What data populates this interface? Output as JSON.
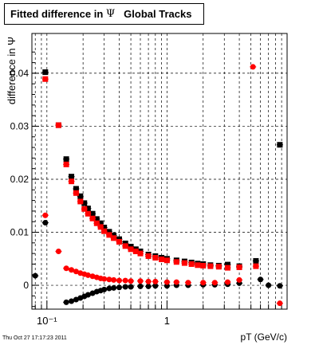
{
  "title": {
    "part1": "Fitted difference in ",
    "symbol": "Ψ",
    "part2": "Global Tracks"
  },
  "footer": {
    "timestamp": "Thu Oct 27 17:17:23 2011"
  },
  "chart_data": {
    "type": "scatter",
    "xlabel": "pT (GeV/c)",
    "ylabel": "difference in Ψ",
    "xscale": "log",
    "xlim": [
      0.075,
      10.0
    ],
    "ylim": [
      -0.0045,
      0.0475
    ],
    "grid": true,
    "x_ticks": [
      {
        "value": 0.1,
        "label": "10⁻¹"
      },
      {
        "value": 1,
        "label": "1"
      }
    ],
    "y_ticks": [
      {
        "value": 0,
        "label": "0"
      },
      {
        "value": 0.01,
        "label": "0.01"
      },
      {
        "value": 0.02,
        "label": "0.02"
      },
      {
        "value": 0.03,
        "label": "0.03"
      },
      {
        "value": 0.04,
        "label": "0.04"
      }
    ],
    "series": [
      {
        "color": "#000000",
        "marker": "square",
        "points": [
          [
            0.097,
            0.0402
          ],
          [
            0.125,
            0.0302
          ],
          [
            0.145,
            0.0238
          ],
          [
            0.16,
            0.0205
          ],
          [
            0.175,
            0.0182
          ],
          [
            0.19,
            0.0168
          ],
          [
            0.205,
            0.0155
          ],
          [
            0.22,
            0.0145
          ],
          [
            0.24,
            0.0135
          ],
          [
            0.26,
            0.0125
          ],
          [
            0.28,
            0.0117
          ],
          [
            0.3,
            0.0109
          ],
          [
            0.33,
            0.0101
          ],
          [
            0.36,
            0.0094
          ],
          [
            0.4,
            0.0087
          ],
          [
            0.45,
            0.0079
          ],
          [
            0.5,
            0.0073
          ],
          [
            0.55,
            0.0068
          ],
          [
            0.6,
            0.0064
          ],
          [
            0.7,
            0.0058
          ],
          [
            0.8,
            0.0055
          ],
          [
            0.9,
            0.0052
          ],
          [
            1.0,
            0.005
          ],
          [
            1.2,
            0.0047
          ],
          [
            1.4,
            0.0045
          ],
          [
            1.6,
            0.0043
          ],
          [
            1.8,
            0.0041
          ],
          [
            2.0,
            0.004
          ],
          [
            2.3,
            0.0038
          ],
          [
            2.7,
            0.0037
          ],
          [
            3.2,
            0.0039
          ],
          [
            4.0,
            0.0036
          ],
          [
            5.5,
            0.0046
          ],
          [
            8.7,
            0.0265
          ]
        ]
      },
      {
        "color": "#000000",
        "marker": "circle",
        "points": [
          [
            0.08,
            0.0018
          ],
          [
            0.097,
            0.0118
          ],
          [
            0.145,
            -0.0032
          ],
          [
            0.16,
            -0.003
          ],
          [
            0.175,
            -0.0027
          ],
          [
            0.19,
            -0.0024
          ],
          [
            0.205,
            -0.0021
          ],
          [
            0.22,
            -0.0018
          ],
          [
            0.24,
            -0.0015
          ],
          [
            0.26,
            -0.0012
          ],
          [
            0.28,
            -0.001
          ],
          [
            0.3,
            -0.0008
          ],
          [
            0.33,
            -0.0006
          ],
          [
            0.36,
            -0.0005
          ],
          [
            0.4,
            -0.0004
          ],
          [
            0.45,
            -0.0003
          ],
          [
            0.5,
            -0.0003
          ],
          [
            0.6,
            -0.0002
          ],
          [
            0.7,
            -0.0002
          ],
          [
            0.8,
            -0.0001
          ],
          [
            1.0,
            -0.0001
          ],
          [
            1.2,
            0.0
          ],
          [
            1.5,
            0.0
          ],
          [
            2.0,
            0.0001
          ],
          [
            2.5,
            0.0001
          ],
          [
            3.2,
            0.0002
          ],
          [
            4.0,
            0.0004
          ],
          [
            6.0,
            0.0011
          ],
          [
            7.0,
            0.0
          ],
          [
            8.7,
            -0.0001
          ]
        ]
      },
      {
        "color": "#ff0000",
        "marker": "square",
        "points": [
          [
            0.097,
            0.0389
          ],
          [
            0.125,
            0.0302
          ],
          [
            0.145,
            0.0228
          ],
          [
            0.16,
            0.0196
          ],
          [
            0.175,
            0.0174
          ],
          [
            0.19,
            0.0158
          ],
          [
            0.205,
            0.0144
          ],
          [
            0.22,
            0.0135
          ],
          [
            0.24,
            0.0126
          ],
          [
            0.26,
            0.0117
          ],
          [
            0.28,
            0.011
          ],
          [
            0.3,
            0.0102
          ],
          [
            0.33,
            0.0095
          ],
          [
            0.36,
            0.0089
          ],
          [
            0.4,
            0.0082
          ],
          [
            0.45,
            0.0074
          ],
          [
            0.5,
            0.0068
          ],
          [
            0.55,
            0.0064
          ],
          [
            0.6,
            0.006
          ],
          [
            0.7,
            0.0055
          ],
          [
            0.8,
            0.0052
          ],
          [
            0.9,
            0.0049
          ],
          [
            1.0,
            0.0047
          ],
          [
            1.2,
            0.0044
          ],
          [
            1.4,
            0.0042
          ],
          [
            1.6,
            0.004
          ],
          [
            1.8,
            0.0038
          ],
          [
            2.0,
            0.0037
          ],
          [
            2.3,
            0.0036
          ],
          [
            2.7,
            0.0035
          ],
          [
            3.2,
            0.0033
          ],
          [
            4.0,
            0.0034
          ],
          [
            5.5,
            0.0036
          ]
        ]
      },
      {
        "color": "#ff0000",
        "marker": "circle",
        "points": [
          [
            0.097,
            0.0132
          ],
          [
            0.125,
            0.0064
          ],
          [
            0.145,
            0.0032
          ],
          [
            0.16,
            0.0029
          ],
          [
            0.175,
            0.0026
          ],
          [
            0.19,
            0.0023
          ],
          [
            0.205,
            0.0021
          ],
          [
            0.22,
            0.0019
          ],
          [
            0.24,
            0.0017
          ],
          [
            0.26,
            0.0015
          ],
          [
            0.28,
            0.0013
          ],
          [
            0.3,
            0.0012
          ],
          [
            0.33,
            0.0011
          ],
          [
            0.36,
            0.001
          ],
          [
            0.4,
            0.0009
          ],
          [
            0.45,
            0.0009
          ],
          [
            0.5,
            0.0008
          ],
          [
            0.6,
            0.0008
          ],
          [
            0.7,
            0.0007
          ],
          [
            0.8,
            0.0007
          ],
          [
            1.0,
            0.0006
          ],
          [
            1.2,
            0.0006
          ],
          [
            1.5,
            0.0005
          ],
          [
            2.0,
            0.0005
          ],
          [
            2.5,
            0.0005
          ],
          [
            3.2,
            0.0006
          ],
          [
            4.0,
            0.001
          ],
          [
            5.2,
            0.0412
          ],
          [
            8.7,
            -0.0034
          ]
        ]
      }
    ]
  }
}
